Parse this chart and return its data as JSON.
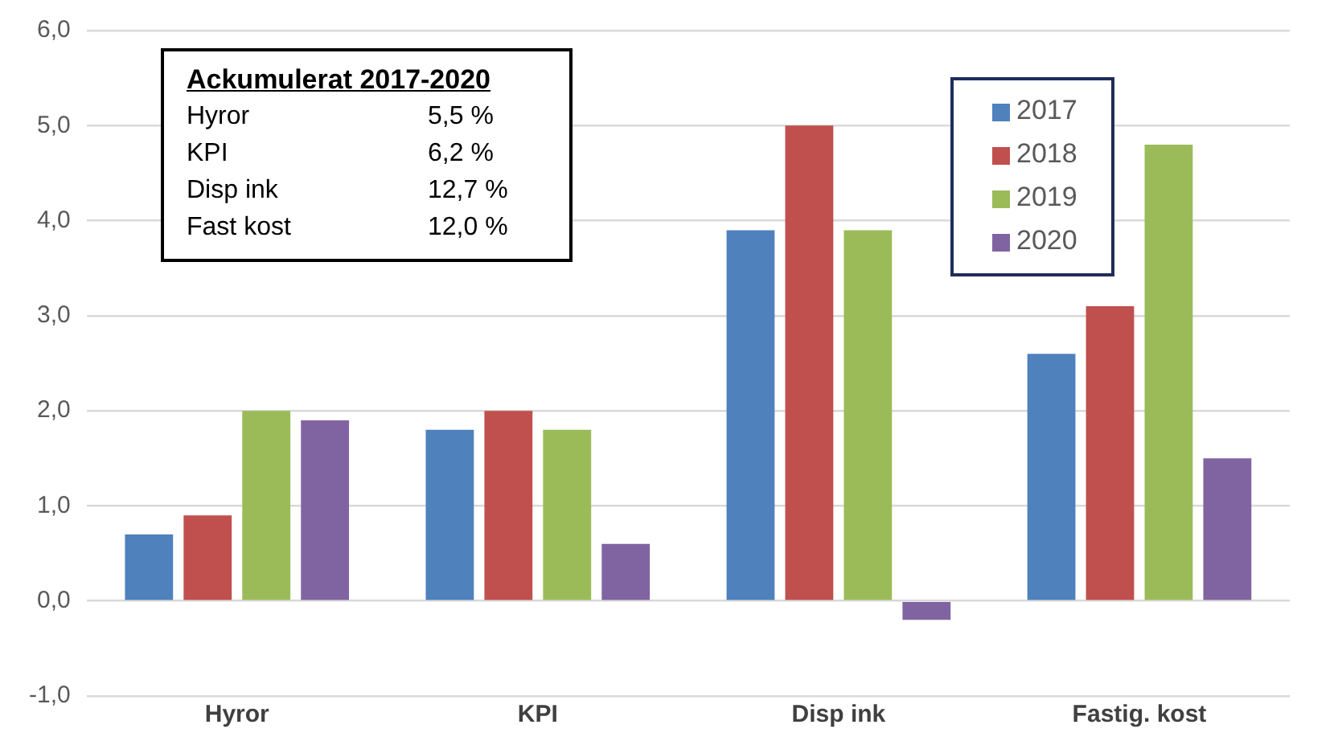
{
  "chart_data": {
    "type": "bar",
    "categories": [
      "Hyror",
      "KPI",
      "Disp ink",
      "Fastig. kost"
    ],
    "series": [
      {
        "name": "2017",
        "color": "#4f81bd",
        "values": [
          0.7,
          1.8,
          3.9,
          2.6
        ]
      },
      {
        "name": "2018",
        "color": "#c0504d",
        "values": [
          0.9,
          2.0,
          5.0,
          3.1
        ]
      },
      {
        "name": "2019",
        "color": "#9bbb59",
        "values": [
          2.0,
          1.8,
          3.9,
          4.8
        ]
      },
      {
        "name": "2020",
        "color": "#8064a2",
        "values": [
          1.9,
          0.6,
          -0.2,
          1.5
        ]
      }
    ],
    "ylim": [
      -1,
      6
    ],
    "yticks": [
      {
        "value": -1,
        "label": "-1,0"
      },
      {
        "value": 0,
        "label": "0,0"
      },
      {
        "value": 1,
        "label": "1,0"
      },
      {
        "value": 2,
        "label": "2,0"
      },
      {
        "value": 3,
        "label": "3,0"
      },
      {
        "value": 4,
        "label": "4,0"
      },
      {
        "value": 5,
        "label": "5,0"
      },
      {
        "value": 6,
        "label": "6,0"
      }
    ],
    "annotations": [
      "Ackumulerat 2017-2020",
      "Hyror 5,5 %",
      "KPI 6,2 %",
      "Disp ink 12,7 %",
      "Fast kost 12,0 %"
    ],
    "grid": "y",
    "legend": "top right"
  }
}
